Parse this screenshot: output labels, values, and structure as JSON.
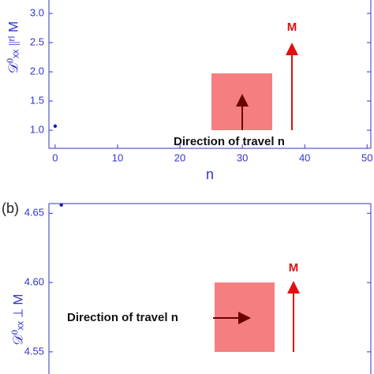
{
  "chart_data": [
    {
      "type": "scatter",
      "xlabel": "n",
      "ylabel": "𝒟⁰ₓₓ ∥ʳˡ M",
      "color": "#1a1ab0",
      "axis_color": "#3333cc",
      "x": [
        0
      ],
      "values": [
        1.07
      ],
      "xlim": [
        -1,
        50.6
      ],
      "ylim": [
        0.69,
        3.23
      ],
      "xticks": [
        0,
        10,
        20,
        30,
        40,
        50
      ],
      "yticks": [
        {
          "value": 1,
          "label": "1.0"
        },
        {
          "value": 1.5,
          "label": "1.5"
        },
        {
          "value": 2,
          "label": "2.0"
        },
        {
          "value": 2.5,
          "label": "2.5"
        },
        {
          "value": 3,
          "label": "3.0"
        }
      ],
      "annotations": [
        "Direction of travel n",
        "M"
      ]
    },
    {
      "type": "scatter",
      "panel_label": "(b)",
      "ylabel": "𝒟⁰ₓₓ ⊥ M",
      "color": "#1a1ab0",
      "axis_color": "#3333cc",
      "x": [
        0
      ],
      "values": [
        4.656
      ],
      "xlim": [
        -2,
        50
      ],
      "ylim": [
        4.534,
        4.657
      ],
      "yticks": [
        4.55,
        {
          "value": 4.6,
          "label": "4.60"
        },
        4.65
      ],
      "annotations": [
        "Direction of travel n",
        "M"
      ]
    }
  ]
}
